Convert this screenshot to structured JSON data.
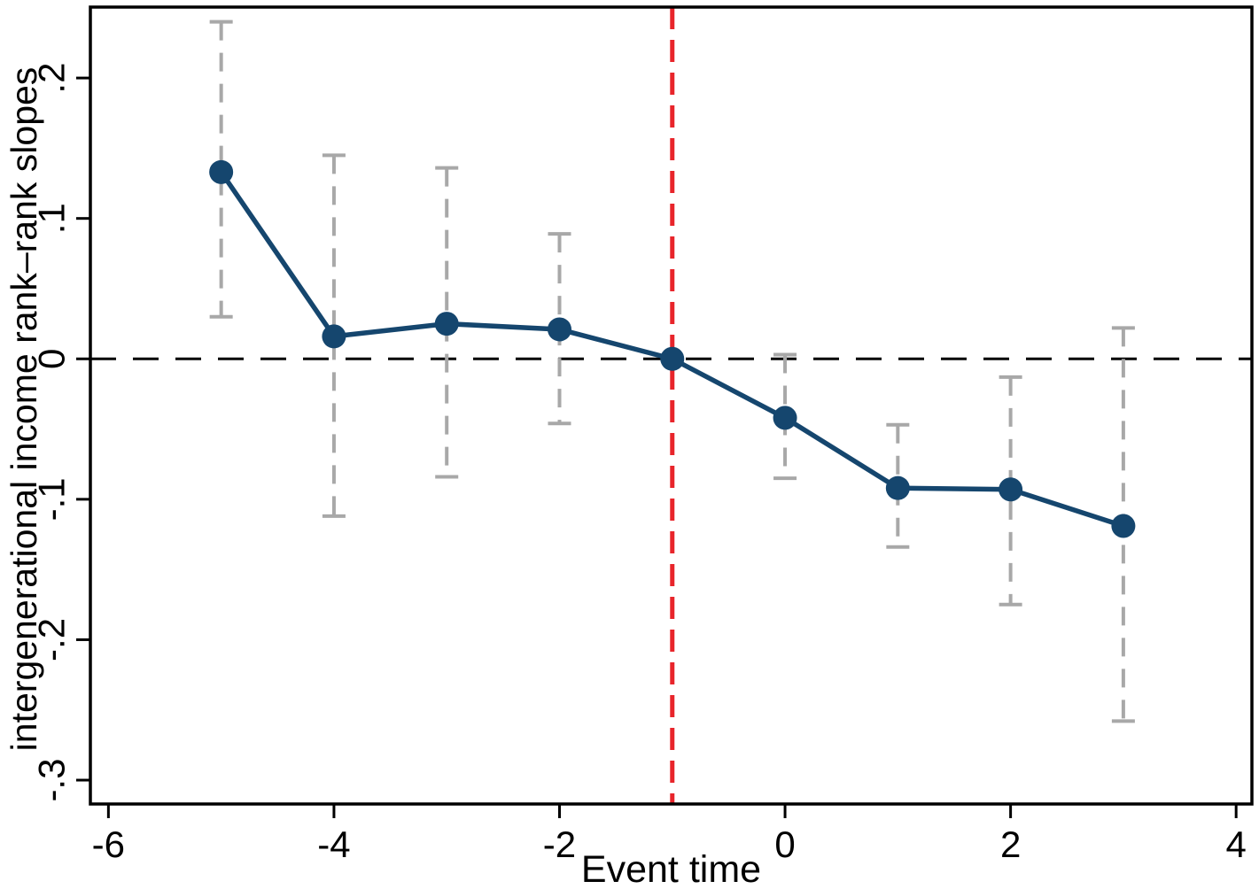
{
  "figure": {
    "background": "#ffffff"
  },
  "chart_data": {
    "type": "line",
    "title": "",
    "xlabel": "Event time",
    "ylabel": "intergenerational income rank–rank slopes",
    "xlim": [
      -6.16,
      4.14
    ],
    "ylim": [
      -0.317,
      0.2505
    ],
    "grid": false,
    "legend": "none",
    "series": [
      {
        "name": "intergenerational income rank–rank slope estimates",
        "points": [
          {
            "x": -5,
            "y": 0.133,
            "ci_low": 0.03,
            "ci_high": 0.24
          },
          {
            "x": -4,
            "y": 0.016,
            "ci_low": -0.112,
            "ci_high": 0.145
          },
          {
            "x": -3,
            "y": 0.025,
            "ci_low": -0.084,
            "ci_high": 0.136
          },
          {
            "x": -2,
            "y": 0.021,
            "ci_low": -0.046,
            "ci_high": 0.089
          },
          {
            "x": -1,
            "y": 0.0,
            "ci_low": null,
            "ci_high": null
          },
          {
            "x": 0,
            "y": -0.042,
            "ci_low": -0.085,
            "ci_high": 0.003
          },
          {
            "x": 1,
            "y": -0.092,
            "ci_low": -0.134,
            "ci_high": -0.047
          },
          {
            "x": 2,
            "y": -0.093,
            "ci_low": -0.175,
            "ci_high": -0.013
          },
          {
            "x": 3,
            "y": -0.119,
            "ci_low": -0.258,
            "ci_high": 0.022
          }
        ]
      }
    ],
    "reference_lines": {
      "horizontal_zero": {
        "y": 0,
        "style": "dashed",
        "color": "#000000"
      },
      "vertical_event": {
        "x": -1,
        "style": "dashed",
        "color": "#e8252b"
      }
    },
    "xticks": [
      {
        "v": -6,
        "label": "-6"
      },
      {
        "v": -4,
        "label": "-4"
      },
      {
        "v": -2,
        "label": "-2"
      },
      {
        "v": 0,
        "label": "0"
      },
      {
        "v": 2,
        "label": "2"
      },
      {
        "v": 4,
        "label": "4"
      }
    ],
    "yticks": [
      {
        "v": 0.2,
        "label": ".2"
      },
      {
        "v": 0.1,
        "label": ".1"
      },
      {
        "v": 0.0,
        "label": "0"
      },
      {
        "v": -0.1,
        "label": "-.1"
      },
      {
        "v": -0.2,
        "label": "-.2"
      },
      {
        "v": -0.3,
        "label": "-.3"
      }
    ],
    "colors": {
      "marker_line": "#15466e",
      "error_bar": "#a8a8a8",
      "zero_line": "#000000",
      "event_line": "#e8252b",
      "axis": "#000000"
    }
  }
}
